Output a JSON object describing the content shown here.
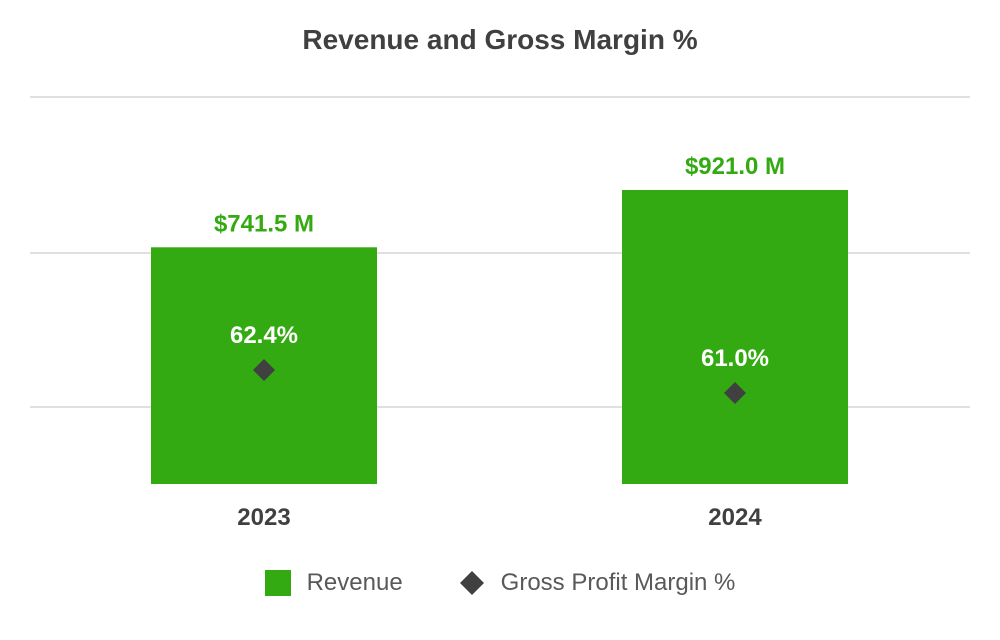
{
  "chart_data": {
    "type": "bar",
    "title": "Revenue and Gross Margin %",
    "categories": [
      "2023",
      "2024"
    ],
    "series": [
      {
        "name": "Revenue",
        "type": "bar",
        "values": [
          741.5,
          921.0
        ],
        "value_labels": [
          "$741.5 M",
          "$921.0 M"
        ],
        "color": "#33aa11",
        "label_color": "#33aa11"
      },
      {
        "name": "Gross Profit Margin %",
        "type": "scatter",
        "marker": "diamond",
        "values": [
          62.4,
          61.0
        ],
        "value_labels": [
          "62.4%",
          "61.0%"
        ],
        "color": "#404040",
        "label_color": "#ffffff"
      }
    ],
    "grid": true,
    "legend_position": "bottom",
    "axis_text_color": "#404040",
    "grid_color": "#e0e0e0"
  }
}
